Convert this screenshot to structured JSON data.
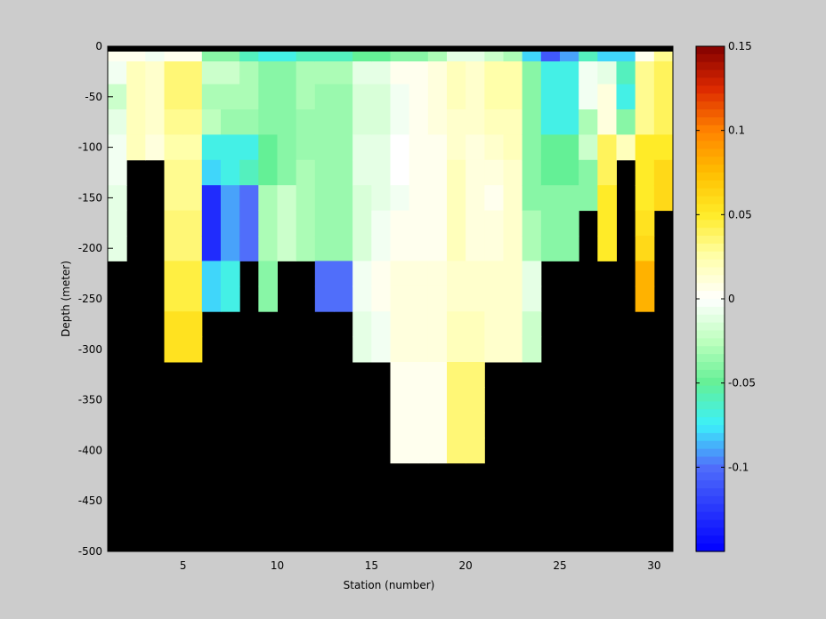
{
  "chart_data": {
    "type": "heatmap",
    "title": "",
    "xlabel": "Station (number)",
    "ylabel": "Depth (meter)",
    "xlim": [
      1,
      31
    ],
    "ylim": [
      -500,
      0
    ],
    "x_ticks": [
      5,
      10,
      15,
      20,
      25,
      30
    ],
    "y_ticks": [
      0,
      -50,
      -100,
      -150,
      -200,
      -250,
      -300,
      -350,
      -400,
      -450,
      -500
    ],
    "grid": false,
    "missing_color": "#000000",
    "colorbar": {
      "range": [
        -0.15,
        0.15
      ],
      "ticks": [
        0.15,
        0.1,
        0.05,
        0,
        -0.05,
        -0.1
      ],
      "tick_labels": [
        "0.15",
        "0.1",
        "0.05",
        "0",
        "-0.05",
        "-0.1"
      ],
      "colormap": "jet-white-center"
    },
    "stations": [
      1,
      2,
      3,
      4,
      5,
      6,
      7,
      8,
      9,
      10,
      11,
      12,
      13,
      14,
      15,
      16,
      17,
      18,
      19,
      20,
      21,
      22,
      23,
      24,
      25,
      26,
      27,
      28,
      29,
      30
    ],
    "depths": [
      -5,
      -25,
      -50,
      -75,
      -100,
      -125,
      -150,
      -175,
      -200,
      -225,
      -250,
      -275,
      -300,
      -325,
      -350,
      -375,
      -400
    ],
    "values": [
      [
        0.005,
        -0.005,
        -0.02,
        -0.01,
        -0.005,
        -0.005,
        -0.01,
        -0.01,
        -0.01,
        null,
        null,
        null,
        null,
        null,
        null,
        null,
        null
      ],
      [
        0.005,
        0.02,
        0.02,
        0.02,
        0.02,
        null,
        null,
        null,
        null,
        null,
        null,
        null,
        null,
        null,
        null,
        null,
        null
      ],
      [
        -0.005,
        0.015,
        0.015,
        0.015,
        0.01,
        null,
        null,
        null,
        null,
        null,
        null,
        null,
        null,
        null,
        null,
        null,
        null
      ],
      [
        0.005,
        0.035,
        0.035,
        0.03,
        0.025,
        0.03,
        0.03,
        0.035,
        0.035,
        0.045,
        0.045,
        0.055,
        0.055,
        null,
        null,
        null,
        null
      ],
      [
        0.005,
        0.035,
        0.035,
        0.03,
        0.025,
        0.03,
        0.03,
        0.035,
        0.035,
        0.045,
        0.045,
        0.055,
        0.055,
        null,
        null,
        null,
        null
      ],
      [
        -0.04,
        -0.02,
        -0.03,
        -0.025,
        -0.07,
        -0.08,
        -0.13,
        -0.13,
        -0.13,
        -0.08,
        -0.08,
        null,
        null,
        null,
        null,
        null,
        null
      ],
      [
        -0.04,
        -0.02,
        -0.03,
        -0.035,
        -0.07,
        -0.07,
        -0.09,
        -0.09,
        -0.09,
        -0.07,
        -0.07,
        null,
        null,
        null,
        null,
        null,
        null
      ],
      [
        -0.06,
        -0.03,
        -0.03,
        -0.035,
        -0.07,
        -0.06,
        -0.1,
        -0.1,
        -0.1,
        null,
        null,
        null,
        null,
        null,
        null,
        null,
        null
      ],
      [
        -0.07,
        -0.04,
        -0.04,
        -0.04,
        -0.05,
        -0.05,
        -0.03,
        -0.03,
        -0.03,
        -0.04,
        -0.04,
        null,
        null,
        null,
        null,
        null,
        null
      ],
      [
        -0.07,
        -0.04,
        -0.04,
        -0.04,
        -0.04,
        -0.04,
        -0.02,
        -0.02,
        -0.02,
        null,
        null,
        null,
        null,
        null,
        null,
        null,
        null
      ],
      [
        -0.06,
        -0.03,
        -0.03,
        -0.035,
        -0.035,
        -0.03,
        -0.03,
        -0.03,
        -0.03,
        null,
        null,
        null,
        null,
        null,
        null,
        null,
        null
      ],
      [
        -0.06,
        -0.03,
        -0.035,
        -0.035,
        -0.035,
        -0.035,
        -0.035,
        -0.035,
        -0.035,
        -0.1,
        -0.1,
        null,
        null,
        null,
        null,
        null,
        null
      ],
      [
        -0.06,
        -0.03,
        -0.035,
        -0.035,
        -0.035,
        -0.035,
        -0.035,
        -0.035,
        -0.035,
        -0.1,
        -0.1,
        null,
        null,
        null,
        null,
        null,
        null
      ],
      [
        -0.05,
        -0.01,
        -0.015,
        -0.015,
        -0.01,
        -0.01,
        -0.015,
        -0.015,
        -0.015,
        -0.005,
        -0.005,
        -0.01,
        -0.01,
        null,
        null,
        null,
        null
      ],
      [
        -0.05,
        -0.01,
        -0.015,
        -0.015,
        -0.01,
        -0.01,
        -0.01,
        -0.005,
        -0.005,
        0.005,
        0.005,
        -0.005,
        -0.005,
        null,
        null,
        null,
        null
      ],
      [
        -0.04,
        0.005,
        -0.005,
        -0.005,
        0,
        0,
        -0.005,
        0.005,
        0.005,
        0.01,
        0.01,
        0.01,
        0.01,
        0.005,
        0.005,
        0.005,
        0.005
      ],
      [
        -0.04,
        0.005,
        0.005,
        0.005,
        0.005,
        0.005,
        0.005,
        0.005,
        0.005,
        0.01,
        0.01,
        0.01,
        0.01,
        0.005,
        0.005,
        0.005,
        0.005
      ],
      [
        -0.03,
        0.01,
        0.01,
        0.01,
        0.005,
        0.005,
        0.005,
        0.005,
        0.005,
        0.01,
        0.01,
        0.01,
        0.01,
        0.005,
        0.005,
        0.005,
        0.005
      ],
      [
        -0.01,
        0.02,
        0.02,
        0.015,
        0.015,
        0.02,
        0.02,
        0.02,
        0.02,
        0.015,
        0.015,
        0.02,
        0.02,
        0.035,
        0.035,
        0.035,
        0.035
      ],
      [
        -0.01,
        0.015,
        0.015,
        0.015,
        0.01,
        0.01,
        0.01,
        0.01,
        0.01,
        0.015,
        0.015,
        0.02,
        0.02,
        0.035,
        0.035,
        0.035,
        0.035
      ],
      [
        -0.02,
        0.025,
        0.025,
        0.02,
        0.015,
        0.01,
        0.005,
        0.01,
        0.01,
        0.015,
        0.015,
        0.015,
        0.015,
        null,
        null,
        null,
        null
      ],
      [
        -0.03,
        0.025,
        0.025,
        0.02,
        0.02,
        0.015,
        0.015,
        0.015,
        0.015,
        0.015,
        0.015,
        0.015,
        0.015,
        null,
        null,
        null,
        null
      ],
      [
        -0.08,
        -0.04,
        -0.04,
        -0.04,
        -0.04,
        -0.04,
        -0.04,
        -0.03,
        -0.03,
        -0.01,
        -0.01,
        -0.02,
        -0.02,
        null,
        null,
        null,
        null
      ],
      [
        -0.11,
        -0.07,
        -0.07,
        -0.07,
        -0.05,
        -0.05,
        -0.04,
        -0.04,
        -0.04,
        null,
        null,
        null,
        null,
        null,
        null,
        null,
        null
      ],
      [
        -0.09,
        -0.07,
        -0.07,
        -0.07,
        -0.05,
        -0.05,
        -0.04,
        -0.04,
        -0.04,
        null,
        null,
        null,
        null,
        null,
        null,
        null,
        null
      ],
      [
        -0.06,
        -0.005,
        -0.005,
        -0.03,
        -0.02,
        -0.04,
        -0.04,
        null,
        null,
        null,
        null,
        null,
        null,
        null,
        null,
        null,
        null
      ],
      [
        -0.08,
        -0.01,
        0.01,
        0.01,
        0.04,
        0.04,
        0.05,
        0.05,
        0.05,
        null,
        null,
        null,
        null,
        null,
        null,
        null,
        null
      ],
      [
        -0.08,
        -0.06,
        -0.07,
        -0.04,
        0.02,
        null,
        null,
        null,
        null,
        null,
        null,
        null,
        null,
        null,
        null,
        null,
        null
      ],
      [
        0.005,
        0.03,
        0.03,
        0.03,
        0.05,
        0.05,
        0.05,
        0.055,
        0.06,
        0.08,
        0.08,
        null,
        null,
        null,
        null,
        null,
        null
      ],
      [
        0.03,
        0.04,
        0.04,
        0.04,
        0.05,
        0.06,
        0.06,
        null,
        null,
        null,
        null,
        null,
        null,
        null,
        null,
        null,
        null
      ]
    ]
  }
}
